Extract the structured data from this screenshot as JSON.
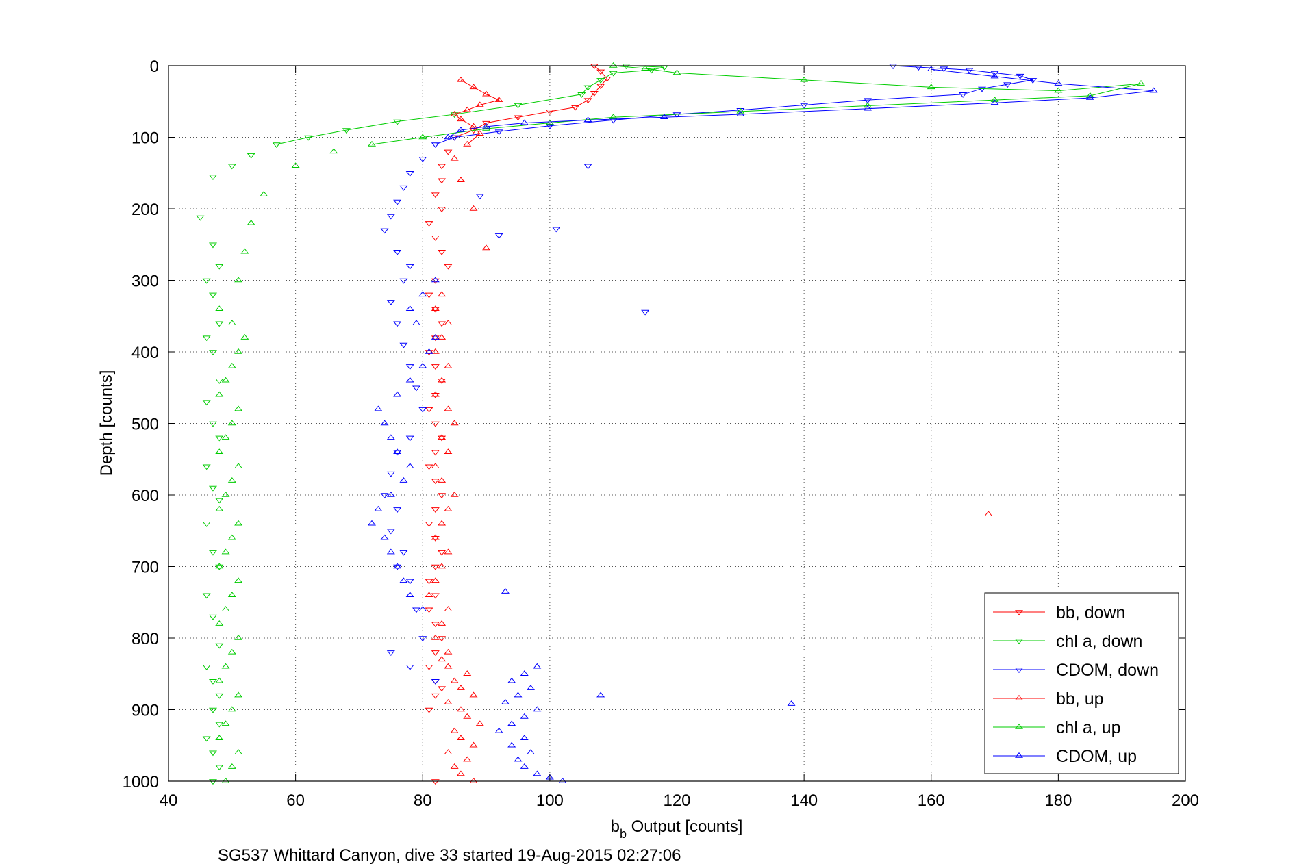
{
  "caption": "SG537 Whittard Canyon, dive 33 started 19-Aug-2015 02:27:06",
  "chart_data": {
    "type": "scatter",
    "title": "",
    "xlabel_main": "b",
    "xlabel_sub": "b",
    "xlabel_rest": " Output [counts]",
    "ylabel": "Depth [counts]",
    "xlim": [
      40,
      200
    ],
    "ylim": [
      0,
      1000
    ],
    "y_reversed": true,
    "grid": true,
    "grid_style": "dotted",
    "x_ticks": [
      40,
      60,
      80,
      100,
      120,
      140,
      160,
      180,
      200
    ],
    "y_ticks": [
      0,
      100,
      200,
      300,
      400,
      500,
      600,
      700,
      800,
      900,
      1000
    ],
    "legend_position": "bottom-right",
    "series": [
      {
        "name": "bb, down",
        "color": "#ff0000",
        "marker": "triangle-down",
        "x": [
          107,
          108,
          109,
          108,
          107,
          106,
          104,
          100,
          95,
          90,
          88,
          85,
          84,
          83,
          83,
          82,
          83,
          81,
          82,
          83,
          84,
          82,
          81,
          82,
          83,
          82,
          81,
          82,
          83,
          82,
          81,
          82,
          83,
          82,
          81,
          82,
          83,
          82,
          81,
          82,
          83,
          82,
          81,
          82,
          81,
          82,
          83,
          82,
          81,
          82,
          83,
          82,
          81,
          82
        ],
        "y": [
          0,
          8,
          18,
          28,
          38,
          48,
          58,
          64,
          72,
          80,
          90,
          100,
          120,
          140,
          160,
          180,
          200,
          220,
          240,
          260,
          280,
          300,
          320,
          340,
          360,
          380,
          400,
          420,
          440,
          460,
          480,
          500,
          520,
          540,
          560,
          580,
          600,
          620,
          640,
          660,
          680,
          700,
          720,
          740,
          760,
          780,
          800,
          820,
          840,
          860,
          870,
          880,
          900,
          1000
        ]
      },
      {
        "name": "chl a, down",
        "color": "#00cc00",
        "marker": "triangle-down",
        "x": [
          112,
          118,
          116,
          110,
          108,
          106,
          105,
          95,
          85,
          76,
          68,
          62,
          57,
          53,
          50,
          47,
          45,
          47,
          48,
          46,
          47,
          48,
          46,
          47,
          48,
          46,
          47,
          48,
          46,
          47,
          48,
          46,
          47,
          48,
          46,
          47,
          48,
          46,
          47,
          48,
          47,
          48,
          46,
          47,
          48,
          47
        ],
        "y": [
          0,
          2,
          6,
          10,
          20,
          30,
          40,
          55,
          68,
          78,
          90,
          100,
          110,
          125,
          140,
          155,
          212,
          250,
          280,
          300,
          320,
          360,
          380,
          400,
          440,
          470,
          500,
          520,
          560,
          590,
          607,
          640,
          680,
          700,
          740,
          770,
          810,
          840,
          860,
          880,
          900,
          920,
          940,
          960,
          980,
          1000
        ]
      },
      {
        "name": "CDOM, down",
        "color": "#0000ff",
        "marker": "triangle-down",
        "x": [
          154,
          158,
          162,
          166,
          170,
          174,
          176,
          172,
          168,
          165,
          150,
          140,
          130,
          120,
          110,
          100,
          92,
          85,
          82,
          80,
          78,
          77,
          76,
          75,
          74,
          76,
          78,
          77,
          75,
          76,
          77,
          78,
          79,
          80,
          78,
          76,
          75,
          74,
          76,
          75,
          77,
          76,
          78,
          79,
          80,
          106,
          89,
          92,
          101,
          115,
          75,
          78,
          82
        ],
        "y": [
          0,
          2,
          4,
          6,
          10,
          14,
          20,
          26,
          32,
          40,
          48,
          55,
          62,
          68,
          76,
          84,
          92,
          100,
          110,
          130,
          150,
          170,
          190,
          210,
          230,
          260,
          280,
          300,
          330,
          360,
          390,
          420,
          450,
          480,
          520,
          540,
          570,
          600,
          620,
          650,
          680,
          700,
          720,
          760,
          800,
          140,
          182,
          237,
          228,
          344,
          820,
          840,
          860
        ]
      },
      {
        "name": "bb, up",
        "color": "#ff0000",
        "marker": "triangle-up",
        "x": [
          88,
          86,
          85,
          87,
          84,
          88,
          86,
          85,
          89,
          87,
          86,
          84,
          88,
          86,
          85,
          87,
          84,
          83,
          84,
          82,
          83,
          84,
          81,
          82,
          83,
          84,
          82,
          83,
          84,
          85,
          83,
          82,
          84,
          83,
          85,
          84,
          82,
          83,
          84,
          82,
          83,
          84,
          82,
          83,
          169,
          90,
          88,
          86,
          85,
          87,
          89,
          88,
          86,
          85,
          87,
          89,
          92,
          90,
          88,
          86
        ],
        "y": [
          1000,
          990,
          980,
          970,
          960,
          950,
          940,
          930,
          920,
          910,
          900,
          890,
          880,
          870,
          860,
          850,
          840,
          830,
          820,
          800,
          780,
          760,
          740,
          720,
          700,
          680,
          660,
          640,
          620,
          600,
          580,
          560,
          540,
          520,
          500,
          480,
          460,
          440,
          420,
          400,
          380,
          360,
          340,
          320,
          627,
          255,
          200,
          160,
          130,
          110,
          95,
          85,
          75,
          68,
          62,
          55,
          48,
          40,
          30,
          20
        ]
      },
      {
        "name": "chl a, up",
        "color": "#00cc00",
        "marker": "triangle-up",
        "x": [
          49,
          50,
          51,
          48,
          49,
          50,
          51,
          48,
          49,
          50,
          51,
          48,
          49,
          50,
          51,
          48,
          49,
          50,
          51,
          48,
          49,
          50,
          51,
          48,
          49,
          50,
          51,
          48,
          49,
          50,
          51,
          52,
          50,
          48,
          51,
          52,
          53,
          55,
          60,
          66,
          72,
          80,
          90,
          100,
          110,
          130,
          150,
          170,
          185,
          193,
          180,
          160,
          140,
          120,
          115,
          110
        ],
        "y": [
          1000,
          980,
          960,
          940,
          920,
          900,
          880,
          860,
          840,
          820,
          800,
          780,
          760,
          740,
          720,
          700,
          680,
          660,
          640,
          620,
          600,
          580,
          560,
          540,
          520,
          500,
          480,
          460,
          440,
          420,
          400,
          380,
          360,
          340,
          300,
          260,
          220,
          180,
          140,
          120,
          110,
          100,
          88,
          80,
          72,
          64,
          56,
          48,
          42,
          25,
          35,
          30,
          20,
          10,
          4,
          0
        ]
      },
      {
        "name": "CDOM, up",
        "color": "#0000ff",
        "marker": "triangle-up",
        "x": [
          102,
          100,
          98,
          96,
          95,
          97,
          94,
          96,
          92,
          94,
          96,
          98,
          93,
          95,
          97,
          94,
          96,
          98,
          108,
          138,
          93,
          80,
          78,
          77,
          76,
          75,
          74,
          72,
          73,
          75,
          77,
          78,
          76,
          75,
          74,
          73,
          76,
          78,
          80,
          81,
          82,
          79,
          78,
          80,
          82,
          84,
          86,
          90,
          96,
          106,
          118,
          130,
          150,
          170,
          185,
          195,
          180,
          170,
          160
        ],
        "y": [
          1000,
          995,
          990,
          980,
          970,
          960,
          950,
          940,
          930,
          920,
          910,
          900,
          890,
          880,
          870,
          860,
          850,
          840,
          880,
          892,
          735,
          760,
          740,
          720,
          700,
          680,
          660,
          640,
          620,
          600,
          580,
          560,
          540,
          520,
          500,
          480,
          460,
          440,
          420,
          400,
          380,
          360,
          340,
          320,
          300,
          100,
          90,
          85,
          80,
          76,
          72,
          68,
          60,
          52,
          45,
          35,
          25,
          15,
          5
        ]
      }
    ]
  }
}
